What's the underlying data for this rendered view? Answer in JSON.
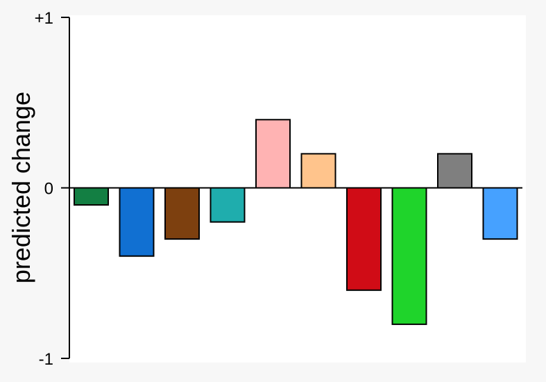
{
  "chart_data": {
    "type": "bar",
    "title": "",
    "xlabel": "",
    "ylabel": "predicted change",
    "ylim": [
      -1,
      1
    ],
    "y_ticks": [
      1,
      0,
      -1
    ],
    "y_tick_labels": [
      "+1",
      "0",
      "-1"
    ],
    "grid": false,
    "categories": [
      "",
      "",
      "",
      "",
      "",
      "",
      "",
      "",
      "",
      ""
    ],
    "values": [
      -0.1,
      -0.4,
      -0.3,
      -0.2,
      0.4,
      0.2,
      -0.6,
      -0.8,
      0.2,
      -0.3
    ],
    "colors": [
      "#137f43",
      "#1170d2",
      "#7d400f",
      "#1fadad",
      "#ffb3b3",
      "#ffc48c",
      "#d00c16",
      "#1fd42b",
      "#7f7f7f",
      "#46a1ff"
    ]
  }
}
